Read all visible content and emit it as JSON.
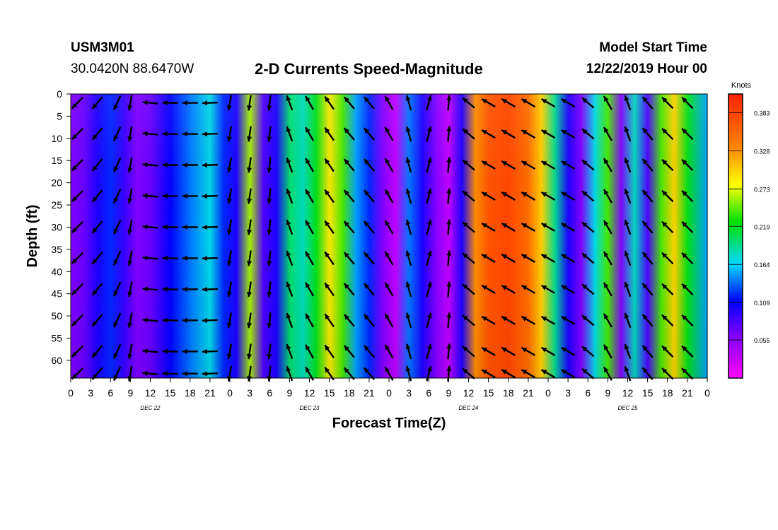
{
  "header": {
    "station": "USM3M01",
    "location": "30.0420N 88.6470W",
    "title": "2-D Currents Speed-Magnitude",
    "model_label": "Model Start Time",
    "model_time": "12/22/2019 Hour 00"
  },
  "chart_data": {
    "type": "heatmap",
    "title": "2-D Currents Speed-Magnitude",
    "xlabel": "Forecast Time(Z)",
    "ylabel": "Depth (ft)",
    "x_unit": "hours from model start",
    "xlim": [
      0,
      96
    ],
    "ylim": [
      0,
      64
    ],
    "y_inverted": true,
    "x_ticks": [
      0,
      3,
      6,
      9,
      12,
      15,
      18,
      21,
      24,
      27,
      30,
      33,
      36,
      39,
      42,
      45,
      48,
      51,
      54,
      57,
      60,
      63,
      66,
      69,
      72,
      75,
      78,
      81,
      84,
      87,
      90,
      93,
      96
    ],
    "x_tick_labels": [
      "0",
      "3",
      "6",
      "9",
      "12",
      "15",
      "18",
      "21",
      "0",
      "3",
      "6",
      "9",
      "12",
      "15",
      "18",
      "21",
      "0",
      "3",
      "6",
      "9",
      "12",
      "15",
      "18",
      "21",
      "0",
      "3",
      "6",
      "9",
      "12",
      "15",
      "18",
      "21",
      "0"
    ],
    "date_labels": [
      {
        "hour": 12,
        "text": "DEC 22"
      },
      {
        "hour": 36,
        "text": "DEC 23"
      },
      {
        "hour": 60,
        "text": "DEC 24"
      },
      {
        "hour": 84,
        "text": "DEC 25"
      }
    ],
    "y_ticks": [
      0,
      5,
      10,
      15,
      20,
      25,
      30,
      35,
      40,
      45,
      50,
      55,
      60
    ],
    "colorbar": {
      "unit_label": "Knots",
      "vmin": 0.0,
      "vmax": 0.41,
      "ticks": [
        0.383,
        0.328,
        0.273,
        0.219,
        0.164,
        0.109,
        0.055
      ]
    },
    "speed_profile_knots": [
      {
        "hour": 0,
        "speed": 0.06
      },
      {
        "hour": 2,
        "speed": 0.07
      },
      {
        "hour": 4,
        "speed": 0.1
      },
      {
        "hour": 6,
        "speed": 0.12
      },
      {
        "hour": 8,
        "speed": 0.09
      },
      {
        "hour": 10,
        "speed": 0.06
      },
      {
        "hour": 12,
        "speed": 0.07
      },
      {
        "hour": 15,
        "speed": 0.11
      },
      {
        "hour": 18,
        "speed": 0.14
      },
      {
        "hour": 21,
        "speed": 0.17
      },
      {
        "hour": 23,
        "speed": 0.12
      },
      {
        "hour": 25,
        "speed": 0.1
      },
      {
        "hour": 27,
        "speed": 0.26
      },
      {
        "hour": 29,
        "speed": 0.08
      },
      {
        "hour": 31,
        "speed": 0.1
      },
      {
        "hour": 33,
        "speed": 0.2
      },
      {
        "hour": 35,
        "speed": 0.18
      },
      {
        "hour": 37,
        "speed": 0.22
      },
      {
        "hour": 39,
        "speed": 0.29
      },
      {
        "hour": 41,
        "speed": 0.24
      },
      {
        "hour": 43,
        "speed": 0.15
      },
      {
        "hour": 45,
        "speed": 0.12
      },
      {
        "hour": 47,
        "speed": 0.06
      },
      {
        "hour": 49,
        "speed": 0.03
      },
      {
        "hour": 51,
        "speed": 0.14
      },
      {
        "hour": 53,
        "speed": 0.1
      },
      {
        "hour": 55,
        "speed": 0.06
      },
      {
        "hour": 57,
        "speed": 0.03
      },
      {
        "hour": 59,
        "speed": 0.1
      },
      {
        "hour": 61,
        "speed": 0.33
      },
      {
        "hour": 63,
        "speed": 0.37
      },
      {
        "hour": 66,
        "speed": 0.38
      },
      {
        "hour": 69,
        "speed": 0.35
      },
      {
        "hour": 71,
        "speed": 0.3
      },
      {
        "hour": 73,
        "speed": 0.19
      },
      {
        "hour": 75,
        "speed": 0.1
      },
      {
        "hour": 77,
        "speed": 0.06
      },
      {
        "hour": 79,
        "speed": 0.17
      },
      {
        "hour": 81,
        "speed": 0.24
      },
      {
        "hour": 83,
        "speed": 0.06
      },
      {
        "hour": 85,
        "speed": 0.18
      },
      {
        "hour": 87,
        "speed": 0.08
      },
      {
        "hour": 89,
        "speed": 0.24
      },
      {
        "hour": 91,
        "speed": 0.3
      },
      {
        "hour": 93,
        "speed": 0.22
      },
      {
        "hour": 96,
        "speed": 0.15
      }
    ],
    "vector_rows_ft": [
      2,
      9,
      16,
      23,
      30,
      37,
      44,
      51,
      58,
      63
    ],
    "vector_columns_hours": [
      1,
      4,
      7,
      9,
      12,
      15,
      18,
      21,
      24,
      27,
      30,
      33,
      36,
      39,
      42,
      45,
      48,
      51,
      54,
      57,
      60,
      63,
      66,
      69,
      72,
      75,
      78,
      81,
      84,
      87,
      90,
      93,
      96
    ],
    "vector_direction_deg": [
      225,
      220,
      205,
      190,
      275,
      272,
      270,
      268,
      190,
      188,
      186,
      340,
      330,
      325,
      320,
      320,
      330,
      345,
      15,
      5,
      310,
      300,
      300,
      300,
      300,
      300,
      310,
      330,
      340,
      320,
      315,
      315,
      315
    ]
  }
}
